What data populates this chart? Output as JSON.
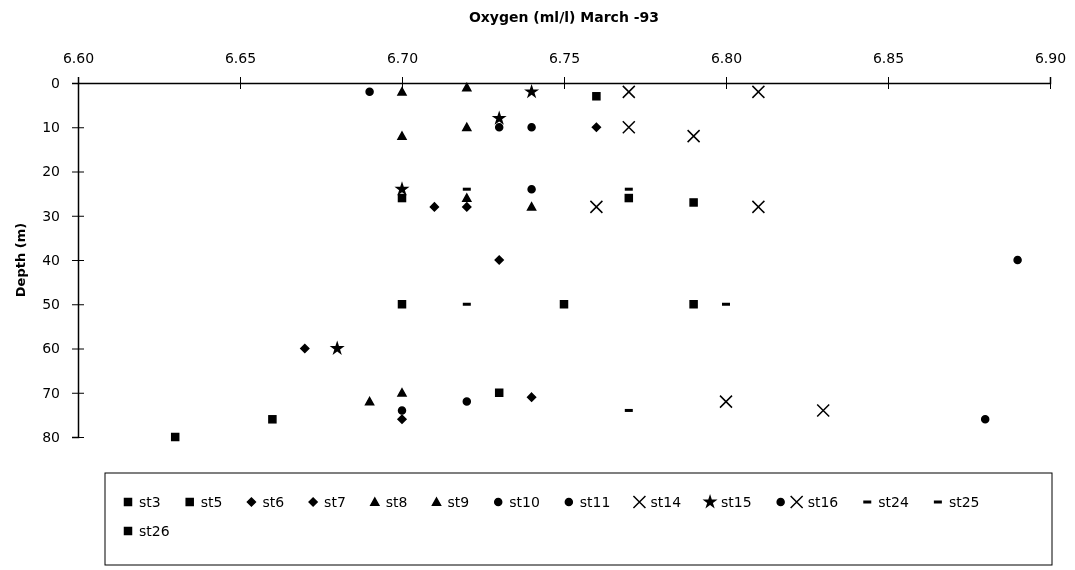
{
  "chart_data": {
    "type": "scatter",
    "title": "Oxygen (ml/l)  March -93",
    "ylabel": "Depth (m)",
    "xlim": [
      6.6,
      6.9
    ],
    "xticks": [
      {
        "value": 6.6,
        "label": "6.60"
      },
      {
        "value": 6.65,
        "label": "6.65"
      },
      {
        "value": 6.7,
        "label": "6.70"
      },
      {
        "value": 6.75,
        "label": "6.75"
      },
      {
        "value": 6.8,
        "label": "6.80"
      },
      {
        "value": 6.85,
        "label": "6.85"
      },
      {
        "value": 6.9,
        "label": "6.90"
      }
    ],
    "ylim": [
      80,
      0
    ],
    "yticks": [
      0,
      10,
      20,
      30,
      40,
      50,
      60,
      70,
      80
    ],
    "grid": false,
    "legend": "bottom",
    "series": [
      {
        "name": "st3",
        "color": "#000000",
        "marker": "square",
        "x": [
          6.63,
          6.75,
          6.79
        ],
        "values": [
          80,
          50,
          27
        ]
      },
      {
        "name": "st5",
        "color": "#000000",
        "marker": "square",
        "x": [
          6.76,
          6.7,
          6.7,
          6.66
        ],
        "values": [
          3,
          26,
          50,
          76
        ]
      },
      {
        "name": "st6",
        "color": "#000000",
        "marker": "diamond",
        "x": [
          6.76,
          6.72,
          6.67,
          6.7
        ],
        "values": [
          10,
          28,
          60,
          76
        ]
      },
      {
        "name": "st7",
        "color": "#000000",
        "marker": "diamond",
        "x": [
          6.71,
          6.73,
          6.74
        ],
        "values": [
          28,
          40,
          71
        ]
      },
      {
        "name": "st8",
        "color": "#000000",
        "marker": "triangle",
        "x": [
          6.72,
          6.72,
          6.72,
          6.7
        ],
        "values": [
          1,
          10,
          26,
          70
        ]
      },
      {
        "name": "st9",
        "color": "#000000",
        "marker": "triangle",
        "x": [
          6.7,
          6.7,
          6.74,
          6.69
        ],
        "values": [
          2,
          12,
          28,
          72
        ]
      },
      {
        "name": "st10",
        "color": "#000000",
        "marker": "circle",
        "x": [
          6.69,
          6.73,
          6.74,
          6.72
        ],
        "values": [
          2,
          10,
          24,
          72
        ]
      },
      {
        "name": "st11",
        "color": "#000000",
        "marker": "circle",
        "x": [
          6.74,
          6.7
        ],
        "values": [
          10,
          74
        ]
      },
      {
        "name": "st14",
        "color": "#000000",
        "marker": "cross",
        "x": [
          6.77,
          6.77,
          6.76,
          6.8
        ],
        "values": [
          2,
          10,
          28,
          72
        ]
      },
      {
        "name": "st15",
        "color": "#000000",
        "marker": "star",
        "x": [
          6.74,
          6.73,
          6.7,
          6.68
        ],
        "values": [
          2,
          8,
          24,
          60
        ]
      },
      {
        "color": "#000000",
        "marker": "circle",
        "x": [
          6.89,
          6.88
        ],
        "values": [
          40,
          76
        ]
      },
      {
        "name": "st16",
        "color": "#000000",
        "marker": "cross",
        "x": [
          6.81,
          6.79,
          6.81,
          6.83
        ],
        "values": [
          2,
          12,
          28,
          74
        ]
      },
      {
        "name": "st24",
        "color": "#000000",
        "x": [
          6.77,
          6.8,
          6.77
        ],
        "values": [
          24,
          50,
          74
        ]
      },
      {
        "name": "st25",
        "color": "#000000",
        "x": [
          6.72,
          6.72
        ],
        "values": [
          24,
          50
        ]
      },
      {
        "name": "st26",
        "color": "#000000",
        "marker": "square",
        "x": [
          6.77,
          6.73,
          6.79
        ],
        "values": [
          26,
          70,
          50
        ]
      }
    ]
  }
}
